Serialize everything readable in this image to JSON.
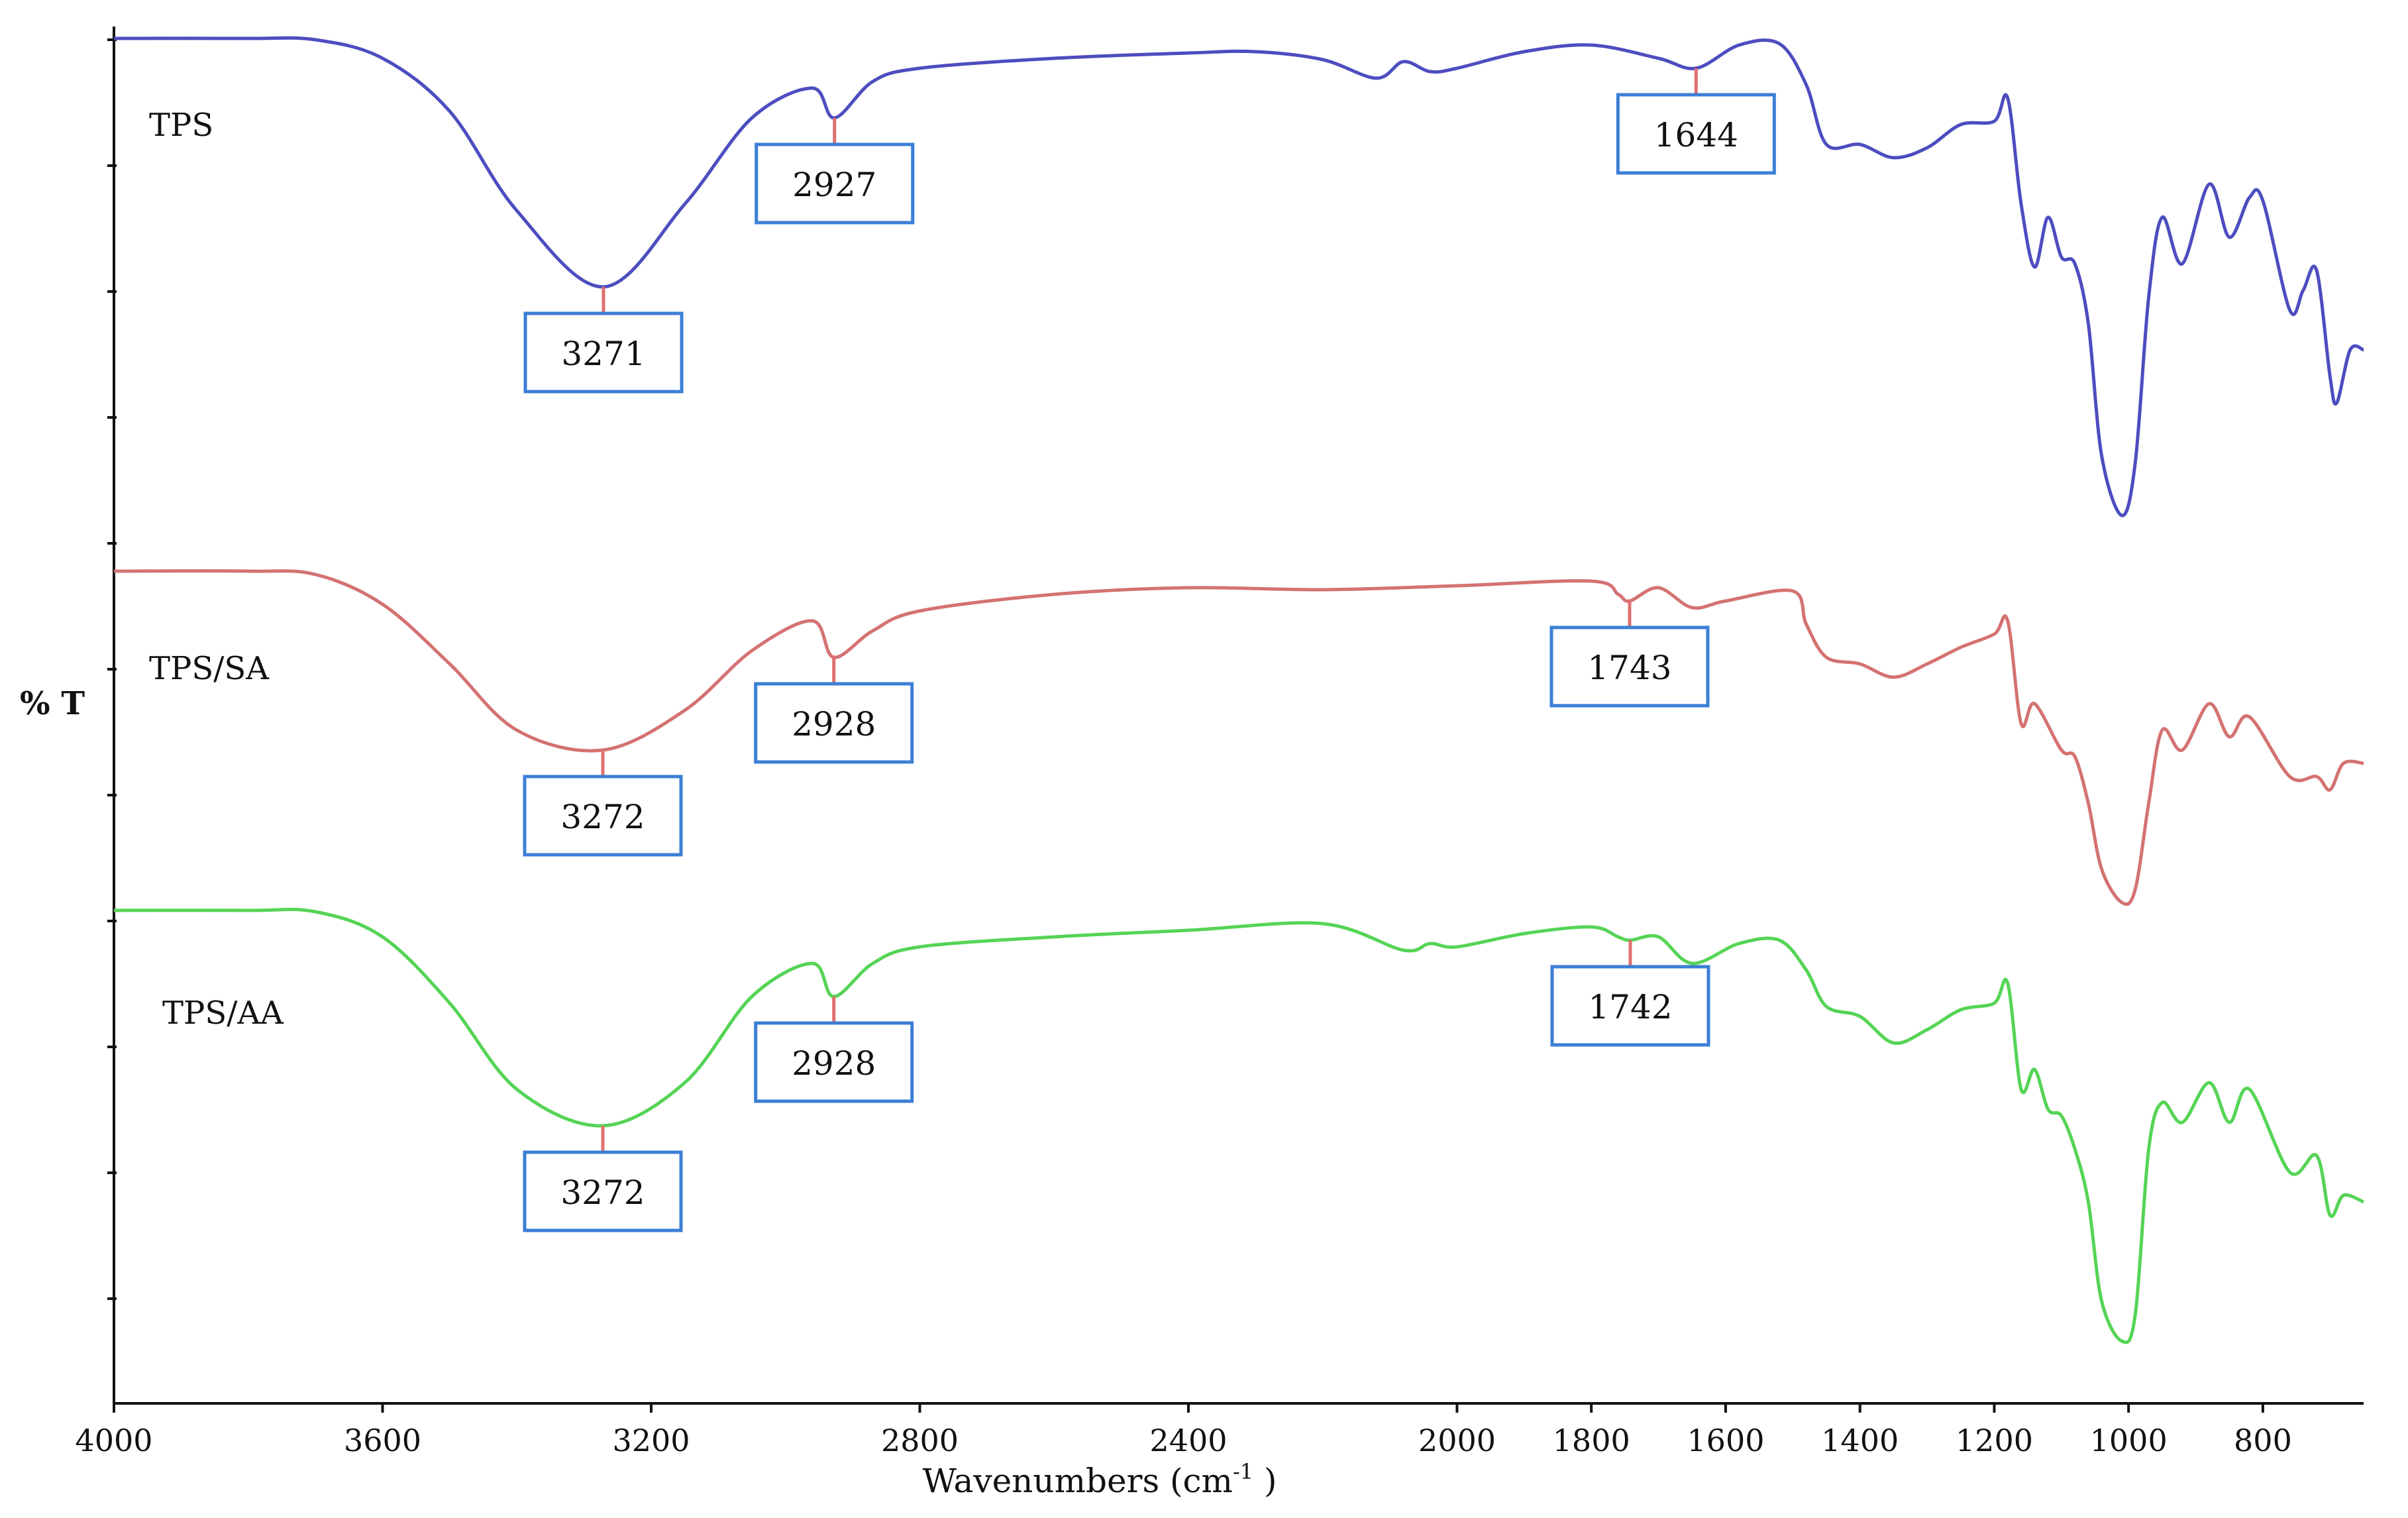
{
  "chart_data": {
    "type": "line",
    "title": "",
    "xlabel": "Wavenumbers (cm",
    "xlabel_sup": "-1",
    "xlabel_close": " )",
    "ylabel": "% T",
    "xlim": [
      4000,
      650
    ],
    "x_reversed": true,
    "y_ticks_labeled": false,
    "grid": false,
    "x_ticks": [
      "4000",
      "3600",
      "3200",
      "2800",
      "2400",
      "2000",
      "1800",
      "1600",
      "1400",
      "1200",
      "1000",
      "800"
    ],
    "series": [
      {
        "name": "TPS",
        "color": "#4d4dc0",
        "points": [
          [
            4000,
            0.1
          ],
          [
            3800,
            0.1
          ],
          [
            3700,
            0.12
          ],
          [
            3600,
            0.4
          ],
          [
            3500,
            1.2
          ],
          [
            3400,
            2.7
          ],
          [
            3271,
            3.85
          ],
          [
            3150,
            2.6
          ],
          [
            3050,
            1.3
          ],
          [
            2960,
            0.85
          ],
          [
            2927,
            1.3
          ],
          [
            2870,
            0.75
          ],
          [
            2800,
            0.55
          ],
          [
            2600,
            0.4
          ],
          [
            2400,
            0.32
          ],
          [
            2300,
            0.3
          ],
          [
            2200,
            0.42
          ],
          [
            2120,
            0.7
          ],
          [
            2080,
            0.45
          ],
          [
            2040,
            0.6
          ],
          [
            2000,
            0.55
          ],
          [
            1900,
            0.3
          ],
          [
            1800,
            0.2
          ],
          [
            1700,
            0.4
          ],
          [
            1644,
            0.55
          ],
          [
            1580,
            0.2
          ],
          [
            1520,
            0.18
          ],
          [
            1480,
            0.8
          ],
          [
            1450,
            1.7
          ],
          [
            1400,
            1.7
          ],
          [
            1350,
            1.9
          ],
          [
            1300,
            1.75
          ],
          [
            1250,
            1.4
          ],
          [
            1200,
            1.35
          ],
          [
            1180,
            1.0
          ],
          [
            1160,
            2.6
          ],
          [
            1140,
            3.55
          ],
          [
            1120,
            2.8
          ],
          [
            1100,
            3.4
          ],
          [
            1080,
            3.5
          ],
          [
            1060,
            4.4
          ],
          [
            1040,
            6.4
          ],
          [
            1010,
            7.3
          ],
          [
            990,
            6.5
          ],
          [
            970,
            4.0
          ],
          [
            950,
            2.8
          ],
          [
            920,
            3.5
          ],
          [
            880,
            2.3
          ],
          [
            850,
            3.1
          ],
          [
            820,
            2.5
          ],
          [
            800,
            2.55
          ],
          [
            760,
            4.2
          ],
          [
            740,
            3.9
          ],
          [
            720,
            3.6
          ],
          [
            700,
            5.2
          ],
          [
            690,
            5.6
          ],
          [
            670,
            4.8
          ],
          [
            650,
            4.8
          ]
        ]
      },
      {
        "name": "TPS/SA",
        "color": "#d47272",
        "points": [
          [
            4000,
            0.1
          ],
          [
            3800,
            0.1
          ],
          [
            3700,
            0.15
          ],
          [
            3600,
            0.6
          ],
          [
            3500,
            1.5
          ],
          [
            3400,
            2.5
          ],
          [
            3272,
            2.8
          ],
          [
            3150,
            2.2
          ],
          [
            3050,
            1.3
          ],
          [
            2960,
            0.85
          ],
          [
            2928,
            1.4
          ],
          [
            2870,
            1.0
          ],
          [
            2800,
            0.7
          ],
          [
            2600,
            0.45
          ],
          [
            2400,
            0.35
          ],
          [
            2200,
            0.38
          ],
          [
            2000,
            0.32
          ],
          [
            1800,
            0.25
          ],
          [
            1760,
            0.45
          ],
          [
            1743,
            0.55
          ],
          [
            1700,
            0.35
          ],
          [
            1650,
            0.65
          ],
          [
            1600,
            0.55
          ],
          [
            1500,
            0.4
          ],
          [
            1480,
            0.9
          ],
          [
            1450,
            1.4
          ],
          [
            1400,
            1.5
          ],
          [
            1350,
            1.7
          ],
          [
            1300,
            1.5
          ],
          [
            1250,
            1.25
          ],
          [
            1200,
            1.05
          ],
          [
            1180,
            0.85
          ],
          [
            1160,
            2.4
          ],
          [
            1140,
            2.1
          ],
          [
            1100,
            2.8
          ],
          [
            1080,
            2.9
          ],
          [
            1060,
            3.6
          ],
          [
            1040,
            4.6
          ],
          [
            1010,
            5.1
          ],
          [
            990,
            4.9
          ],
          [
            970,
            3.6
          ],
          [
            950,
            2.5
          ],
          [
            920,
            2.8
          ],
          [
            880,
            2.1
          ],
          [
            850,
            2.6
          ],
          [
            820,
            2.3
          ],
          [
            760,
            3.2
          ],
          [
            720,
            3.2
          ],
          [
            700,
            3.4
          ],
          [
            680,
            3.0
          ],
          [
            650,
            3.0
          ]
        ]
      },
      {
        "name": "TPS/AA",
        "color": "#55d455",
        "points": [
          [
            4000,
            0.1
          ],
          [
            3800,
            0.1
          ],
          [
            3700,
            0.12
          ],
          [
            3600,
            0.5
          ],
          [
            3500,
            1.5
          ],
          [
            3400,
            2.8
          ],
          [
            3272,
            3.35
          ],
          [
            3150,
            2.7
          ],
          [
            3050,
            1.4
          ],
          [
            2960,
            0.9
          ],
          [
            2928,
            1.4
          ],
          [
            2870,
            0.9
          ],
          [
            2800,
            0.65
          ],
          [
            2600,
            0.5
          ],
          [
            2400,
            0.4
          ],
          [
            2200,
            0.3
          ],
          [
            2080,
            0.7
          ],
          [
            2040,
            0.6
          ],
          [
            2000,
            0.65
          ],
          [
            1900,
            0.45
          ],
          [
            1800,
            0.35
          ],
          [
            1760,
            0.5
          ],
          [
            1742,
            0.55
          ],
          [
            1700,
            0.5
          ],
          [
            1650,
            0.9
          ],
          [
            1580,
            0.6
          ],
          [
            1520,
            0.55
          ],
          [
            1480,
            1.0
          ],
          [
            1450,
            1.55
          ],
          [
            1400,
            1.7
          ],
          [
            1350,
            2.1
          ],
          [
            1300,
            1.9
          ],
          [
            1250,
            1.6
          ],
          [
            1200,
            1.5
          ],
          [
            1180,
            1.2
          ],
          [
            1160,
            2.8
          ],
          [
            1140,
            2.5
          ],
          [
            1120,
            3.1
          ],
          [
            1100,
            3.2
          ],
          [
            1080,
            3.7
          ],
          [
            1060,
            4.5
          ],
          [
            1040,
            6.0
          ],
          [
            1010,
            6.6
          ],
          [
            990,
            6.2
          ],
          [
            970,
            3.7
          ],
          [
            950,
            3.0
          ],
          [
            920,
            3.3
          ],
          [
            880,
            2.7
          ],
          [
            850,
            3.3
          ],
          [
            820,
            2.8
          ],
          [
            760,
            4.05
          ],
          [
            720,
            3.8
          ],
          [
            700,
            4.7
          ],
          [
            680,
            4.4
          ],
          [
            650,
            4.5
          ]
        ]
      }
    ],
    "annotations": [
      {
        "series": 0,
        "wavenumber": 3271,
        "label": "3271",
        "box_below": true
      },
      {
        "series": 0,
        "wavenumber": 2927,
        "label": "2927",
        "box_below": true
      },
      {
        "series": 0,
        "wavenumber": 1644,
        "label": "1644",
        "box_below": true
      },
      {
        "series": 1,
        "wavenumber": 3272,
        "label": "3272",
        "box_below": true
      },
      {
        "series": 1,
        "wavenumber": 2928,
        "label": "2928",
        "box_below": true
      },
      {
        "series": 1,
        "wavenumber": 1743,
        "label": "1743",
        "box_below": true
      },
      {
        "series": 2,
        "wavenumber": 3272,
        "label": "3272",
        "box_below": true
      },
      {
        "series": 2,
        "wavenumber": 2928,
        "label": "2928",
        "box_below": true
      },
      {
        "series": 2,
        "wavenumber": 1742,
        "label": "1742",
        "box_below": true
      }
    ]
  }
}
